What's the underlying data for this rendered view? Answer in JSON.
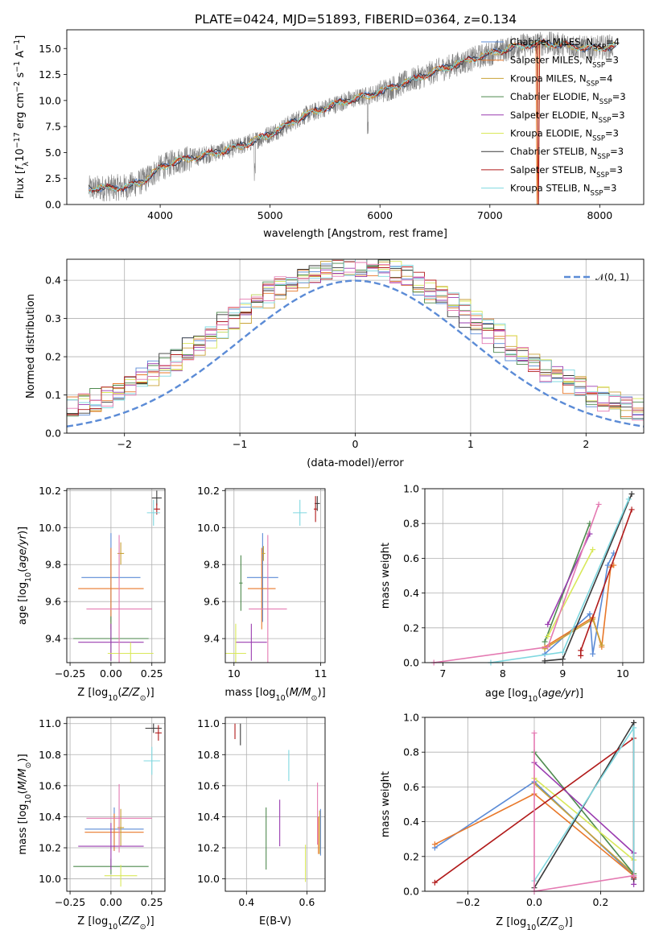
{
  "title": "PLATE=0424, MJD=51893, FIBERID=0364, z=0.134",
  "colors": {
    "Chabrier MILES": "#5b8bd6",
    "Salpeter MILES": "#e8782a",
    "Kroupa MILES": "#c9a237",
    "Chabrier ELODIE": "#4e8a4e",
    "Salpeter ELODIE": "#9a3cb0",
    "Kroupa ELODIE": "#d9e85a",
    "Chabrier STELIB": "#3a3a3a",
    "Salpeter STELIB": "#b11a1a",
    "Kroupa STELIB": "#7fd8e0",
    "pink": "#e47ab2",
    "data": "#808080",
    "gauss": "#5b8bd6"
  },
  "legend": [
    {
      "base": "Chabrier MILES, N",
      "sub": "SSP",
      "rest": "=4",
      "key": "Chabrier MILES"
    },
    {
      "base": "Salpeter MILES, N",
      "sub": "SSP",
      "rest": "=3",
      "key": "Salpeter MILES"
    },
    {
      "base": "Kroupa MILES, N",
      "sub": "SSP",
      "rest": "=4",
      "key": "Kroupa MILES"
    },
    {
      "base": "Chabrier ELODIE, N",
      "sub": "SSP",
      "rest": "=3",
      "key": "Chabrier ELODIE"
    },
    {
      "base": "Salpeter ELODIE, N",
      "sub": "SSP",
      "rest": "=3",
      "key": "Salpeter ELODIE"
    },
    {
      "base": "Kroupa ELODIE, N",
      "sub": "SSP",
      "rest": "=3",
      "key": "Kroupa ELODIE"
    },
    {
      "base": "Chabrier STELIB, N",
      "sub": "SSP",
      "rest": "=3",
      "key": "Chabrier STELIB"
    },
    {
      "base": "Salpeter STELIB, N",
      "sub": "SSP",
      "rest": "=3",
      "key": "Salpeter STELIB"
    },
    {
      "base": "Kroupa STELIB, N",
      "sub": "SSP",
      "rest": "=3",
      "key": "Kroupa STELIB"
    }
  ],
  "chart_data": [
    {
      "type": "line",
      "xlabel": "wavelength [Angstrom, rest frame]",
      "ylabel": "Flux [f_λ 10^-17 erg cm^-2 s^-1 A^-1]",
      "xlim": [
        3150,
        8400
      ],
      "ylim": [
        0,
        16.8
      ],
      "xticks": [
        4000,
        5000,
        6000,
        7000,
        8000
      ],
      "yticks": [
        0.0,
        2.5,
        5.0,
        7.5,
        10.0,
        12.5,
        15.0
      ],
      "continuum": [
        [
          3350,
          1.5
        ],
        [
          3550,
          1.6
        ],
        [
          3700,
          1.7
        ],
        [
          3850,
          2.3
        ],
        [
          4000,
          3.5
        ],
        [
          4150,
          4.2
        ],
        [
          4300,
          4.5
        ],
        [
          4500,
          5.0
        ],
        [
          4700,
          5.5
        ],
        [
          4900,
          6.3
        ],
        [
          5100,
          7.3
        ],
        [
          5300,
          8.5
        ],
        [
          5500,
          9.3
        ],
        [
          5700,
          10.0
        ],
        [
          5900,
          10.5
        ],
        [
          6100,
          11.2
        ],
        [
          6300,
          12.0
        ],
        [
          6500,
          12.8
        ],
        [
          6700,
          13.5
        ],
        [
          6900,
          14.2
        ],
        [
          7100,
          14.8
        ],
        [
          7300,
          15.3
        ],
        [
          7500,
          15.5
        ],
        [
          7700,
          15.3
        ],
        [
          7900,
          15.0
        ],
        [
          8100,
          15.2
        ]
      ]
    },
    {
      "type": "histogram",
      "xlabel": "(data-model)/error",
      "ylabel": "Normed distribution",
      "xlim": [
        -2.5,
        2.5
      ],
      "ylim": [
        0,
        0.455
      ],
      "xticks": [
        -2,
        -1,
        0,
        1,
        2
      ],
      "yticks": [
        0.0,
        0.1,
        0.2,
        0.3,
        0.4
      ],
      "gauss_label": "𝒩(0, 1)",
      "bin_width": 0.1
    },
    {
      "type": "scatter-errorbar",
      "xlabel": "Z [log10(Z/Z⊙)]",
      "ylabel": "age  [log10(age/yr)]",
      "xlim": [
        -0.27,
        0.33
      ],
      "ylim": [
        9.27,
        10.21
      ],
      "xticks": [
        -0.25,
        0.0,
        0.25
      ],
      "yticks": [
        9.4,
        9.6,
        9.8,
        10.0,
        10.2
      ],
      "points": [
        {
          "s": "Chabrier MILES",
          "x": 0.0,
          "xe": 0.18,
          "y": 9.73,
          "ye": 0.24
        },
        {
          "s": "Salpeter MILES",
          "x": 0.0,
          "xe": 0.2,
          "y": 9.67,
          "ye": 0.22
        },
        {
          "s": "Kroupa MILES",
          "x": 0.06,
          "xe": 0.02,
          "y": 9.86,
          "ye": 0.06
        },
        {
          "s": "Chabrier ELODIE",
          "x": 0.0,
          "xe": 0.23,
          "y": 9.4,
          "ye": 0.12
        },
        {
          "s": "Salpeter ELODIE",
          "x": 0.0,
          "xe": 0.2,
          "y": 9.38,
          "ye": 0.1
        },
        {
          "s": "Kroupa ELODIE",
          "x": 0.12,
          "xe": 0.14,
          "y": 9.32,
          "ye": 0.06
        },
        {
          "s": "Chabrier STELIB",
          "x": 0.28,
          "xe": 0.03,
          "y": 10.16,
          "ye": 0.04
        },
        {
          "s": "Salpeter STELIB",
          "x": 0.28,
          "xe": 0.02,
          "y": 10.1,
          "ye": 0.03
        },
        {
          "s": "Kroupa STELIB",
          "x": 0.26,
          "xe": 0.04,
          "y": 10.08,
          "ye": 0.07
        },
        {
          "s": "pink",
          "x": 0.05,
          "xe": 0.2,
          "y": 9.56,
          "ye": 0.4
        }
      ]
    },
    {
      "type": "scatter-errorbar",
      "xlabel": "mass [log10(M/M⊙)]",
      "ylabel": "",
      "xlim": [
        9.9,
        11.05
      ],
      "ylim": [
        9.27,
        10.21
      ],
      "xticks": [
        10,
        11
      ],
      "yticks": [
        9.4,
        9.6,
        9.8,
        10.0,
        10.2
      ],
      "points": [
        {
          "s": "Chabrier MILES",
          "x": 10.33,
          "xe": 0.18,
          "y": 9.73,
          "ye": 0.24
        },
        {
          "s": "Salpeter MILES",
          "x": 10.32,
          "xe": 0.16,
          "y": 9.67,
          "ye": 0.22
        },
        {
          "s": "Kroupa MILES",
          "x": 10.34,
          "xe": 0.02,
          "y": 9.86,
          "ye": 0.04
        },
        {
          "s": "Chabrier ELODIE",
          "x": 10.08,
          "xe": 0.02,
          "y": 9.7,
          "ye": 0.15
        },
        {
          "s": "Salpeter ELODIE",
          "x": 10.2,
          "xe": 0.18,
          "y": 9.38,
          "ye": 0.1
        },
        {
          "s": "Kroupa ELODIE",
          "x": 10.02,
          "xe": 0.12,
          "y": 9.32,
          "ye": 0.16
        },
        {
          "s": "Chabrier STELIB",
          "x": 10.96,
          "xe": 0.03,
          "y": 10.13,
          "ye": 0.04
        },
        {
          "s": "Salpeter STELIB",
          "x": 10.94,
          "xe": 0.02,
          "y": 10.1,
          "ye": 0.07
        },
        {
          "s": "Kroupa STELIB",
          "x": 10.76,
          "xe": 0.08,
          "y": 10.08,
          "ye": 0.07
        },
        {
          "s": "pink",
          "x": 10.39,
          "xe": 0.22,
          "y": 9.56,
          "ye": 0.4
        }
      ]
    },
    {
      "type": "line",
      "xlabel": "age  [log10(age/yr)]",
      "ylabel": "mass weight",
      "xlim": [
        6.7,
        10.35
      ],
      "ylim": [
        0,
        1.0
      ],
      "xticks": [
        7,
        8,
        9,
        10
      ],
      "yticks": [
        0.0,
        0.2,
        0.4,
        0.6,
        0.8,
        1.0
      ],
      "series": [
        {
          "s": "Chabrier MILES",
          "x": [
            8.7,
            9.45,
            9.5,
            9.75,
            9.85
          ],
          "y": [
            0.05,
            0.28,
            0.05,
            0.56,
            0.63
          ]
        },
        {
          "s": "Salpeter MILES",
          "x": [
            8.7,
            9.5,
            9.65,
            9.8,
            9.85
          ],
          "y": [
            0.09,
            0.26,
            0.09,
            0.55,
            0.56
          ]
        },
        {
          "s": "Kroupa MILES",
          "x": [
            8.7,
            9.5,
            9.65
          ],
          "y": [
            0.08,
            0.25,
            0.1
          ]
        },
        {
          "s": "Chabrier ELODIE",
          "x": [
            8.7,
            9.45
          ],
          "y": [
            0.12,
            0.8
          ]
        },
        {
          "s": "Salpeter ELODIE",
          "x": [
            8.75,
            9.45
          ],
          "y": [
            0.22,
            0.74
          ]
        },
        {
          "s": "Kroupa ELODIE",
          "x": [
            8.75,
            9.5
          ],
          "y": [
            0.15,
            0.65
          ]
        },
        {
          "s": "Chabrier STELIB",
          "x": [
            8.7,
            9.0,
            10.15
          ],
          "y": [
            0.01,
            0.02,
            0.97
          ]
        },
        {
          "s": "Salpeter STELIB",
          "x": [
            9.3,
            9.3,
            10.15
          ],
          "y": [
            0.04,
            0.07,
            0.88
          ]
        },
        {
          "s": "Kroupa STELIB",
          "x": [
            7.8,
            9.0,
            10.1
          ],
          "y": [
            0.0,
            0.06,
            0.94
          ]
        },
        {
          "s": "pink",
          "x": [
            6.85,
            8.75,
            9.6
          ],
          "y": [
            0.0,
            0.09,
            0.91
          ]
        }
      ]
    },
    {
      "type": "scatter-errorbar",
      "xlabel": "Z [log10(Z/Z⊙)]",
      "ylabel": "mass [log10(M/M⊙)]",
      "xlim": [
        -0.27,
        0.33
      ],
      "ylim": [
        9.92,
        11.04
      ],
      "xticks": [
        -0.25,
        0.0,
        0.25
      ],
      "yticks": [
        10.0,
        10.2,
        10.4,
        10.6,
        10.8,
        11.0
      ],
      "points": [
        {
          "s": "Chabrier MILES",
          "x": 0.02,
          "xe": 0.18,
          "y": 10.32,
          "ye": 0.14
        },
        {
          "s": "Salpeter MILES",
          "x": 0.02,
          "xe": 0.18,
          "y": 10.3,
          "ye": 0.12
        },
        {
          "s": "Kroupa MILES",
          "x": 0.06,
          "xe": 0.02,
          "y": 10.33,
          "ye": 0.12
        },
        {
          "s": "Chabrier ELODIE",
          "x": 0.0,
          "xe": 0.23,
          "y": 10.08,
          "ye": 0.05
        },
        {
          "s": "Salpeter ELODIE",
          "x": 0.0,
          "xe": 0.2,
          "y": 10.21,
          "ye": 0.15
        },
        {
          "s": "Kroupa ELODIE",
          "x": 0.06,
          "xe": 0.1,
          "y": 10.02,
          "ye": 0.07
        },
        {
          "s": "Chabrier STELIB",
          "x": 0.26,
          "xe": 0.05,
          "y": 10.97,
          "ye": 0.03
        },
        {
          "s": "Salpeter STELIB",
          "x": 0.29,
          "xe": 0.02,
          "y": 10.94,
          "ye": 0.05
        },
        {
          "s": "Kroupa STELIB",
          "x": 0.25,
          "xe": 0.05,
          "y": 10.76,
          "ye": 0.09
        },
        {
          "s": "pink",
          "x": 0.05,
          "xe": 0.2,
          "y": 10.39,
          "ye": 0.22
        }
      ]
    },
    {
      "type": "errorbar",
      "xlabel": "E(B-V)",
      "ylabel": "",
      "xlim": [
        0.33,
        0.66
      ],
      "ylim": [
        9.92,
        11.04
      ],
      "xticks": [
        0.4,
        0.6
      ],
      "yticks": [
        10.0,
        10.2,
        10.4,
        10.6,
        10.8,
        11.0
      ],
      "points": [
        {
          "s": "Chabrier MILES",
          "x": 0.645,
          "y": 10.3,
          "ye": 0.15
        },
        {
          "s": "Salpeter MILES",
          "x": 0.638,
          "y": 10.28,
          "ye": 0.12
        },
        {
          "s": "Kroupa MILES",
          "x": 0.642,
          "y": 10.3,
          "ye": 0.14
        },
        {
          "s": "Chabrier ELODIE",
          "x": 0.465,
          "y": 10.26,
          "ye": 0.2
        },
        {
          "s": "Salpeter ELODIE",
          "x": 0.51,
          "y": 10.36,
          "ye": 0.15
        },
        {
          "s": "Kroupa ELODIE",
          "x": 0.595,
          "y": 10.1,
          "ye": 0.12
        },
        {
          "s": "Chabrier STELIB",
          "x": 0.38,
          "y": 10.93,
          "ye": 0.07
        },
        {
          "s": "Salpeter STELIB",
          "x": 0.362,
          "y": 10.95,
          "ye": 0.05
        },
        {
          "s": "Kroupa STELIB",
          "x": 0.54,
          "y": 10.73,
          "ye": 0.1
        },
        {
          "s": "pink",
          "x": 0.635,
          "y": 10.42,
          "ye": 0.2
        }
      ]
    },
    {
      "type": "line",
      "xlabel": "Z [log10(Z/Z⊙)]",
      "ylabel": "mass weight",
      "xlim": [
        -0.33,
        0.33
      ],
      "ylim": [
        0,
        1.0
      ],
      "xticks": [
        -0.2,
        0.0,
        0.2
      ],
      "yticks": [
        0.0,
        0.2,
        0.4,
        0.6,
        0.8,
        1.0
      ],
      "series": [
        {
          "s": "Chabrier MILES",
          "x": [
            -0.3,
            0.0,
            0.3
          ],
          "y": [
            0.25,
            0.63,
            0.09
          ]
        },
        {
          "s": "Salpeter MILES",
          "x": [
            -0.3,
            0.0,
            0.3
          ],
          "y": [
            0.27,
            0.56,
            0.09
          ]
        },
        {
          "s": "Kroupa MILES",
          "x": [
            0.0,
            0.3
          ],
          "y": [
            0.62,
            0.1
          ]
        },
        {
          "s": "Chabrier ELODIE",
          "x": [
            0.0,
            0.3
          ],
          "y": [
            0.8,
            0.1
          ]
        },
        {
          "s": "Salpeter ELODIE",
          "x": [
            0.0,
            0.3,
            0.3
          ],
          "y": [
            0.74,
            0.22,
            0.04
          ]
        },
        {
          "s": "Kroupa ELODIE",
          "x": [
            0.0,
            0.3
          ],
          "y": [
            0.65,
            0.18
          ]
        },
        {
          "s": "Chabrier STELIB",
          "x": [
            0.0,
            0.3,
            0.3
          ],
          "y": [
            0.02,
            0.97,
            0.07
          ]
        },
        {
          "s": "Salpeter STELIB",
          "x": [
            -0.3,
            0.3,
            0.3
          ],
          "y": [
            0.05,
            0.88,
            0.08
          ]
        },
        {
          "s": "Kroupa STELIB",
          "x": [
            0.0,
            0.3,
            0.3
          ],
          "y": [
            0.06,
            0.94,
            0.09
          ]
        },
        {
          "s": "pink",
          "x": [
            0.0,
            0.0,
            0.3
          ],
          "y": [
            0.91,
            0.0,
            0.09
          ]
        }
      ]
    }
  ]
}
